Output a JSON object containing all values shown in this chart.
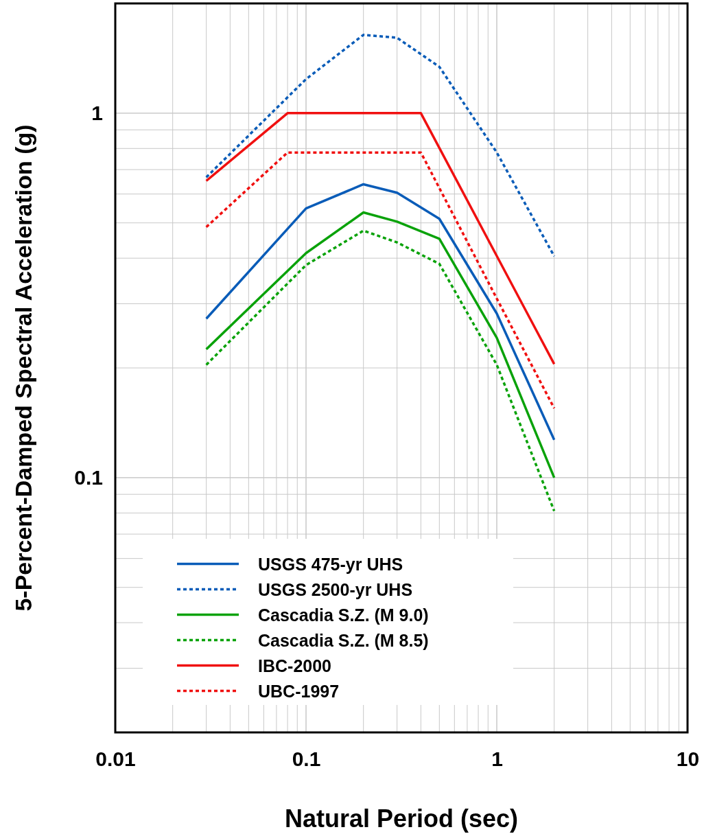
{
  "chart_data": {
    "type": "line",
    "xlabel": "Natural Period (sec)",
    "ylabel": "5-Percent-Damped Spectral Acceleration (g)",
    "log": "xy",
    "xlim": [
      0.01,
      10
    ],
    "xticks": [
      0.01,
      0.1,
      1,
      10
    ],
    "ylim": [
      0.02,
      2
    ],
    "yticks": [
      0.1,
      1
    ],
    "grid": true,
    "legend": "bottom left",
    "marker": "none",
    "series": [
      {
        "name": "USGS 475-yr UHS",
        "color": "#0a5cb8",
        "line_style": "solid",
        "x": [
          0.03,
          0.1,
          0.2,
          0.3,
          0.5,
          1,
          2
        ],
        "values": [
          0.273,
          0.548,
          0.638,
          0.605,
          0.513,
          0.282,
          0.127
        ]
      },
      {
        "name": "USGS 2500-yr UHS",
        "color": "#0a5cb8",
        "line_style": "dotted",
        "x": [
          0.03,
          0.1,
          0.2,
          0.3,
          0.5,
          1,
          2
        ],
        "values": [
          0.667,
          1.24,
          1.64,
          1.61,
          1.34,
          0.78,
          0.405
        ]
      },
      {
        "name": "Cascadia S.Z. (M 9.0)",
        "color": "#0aa20a",
        "line_style": "solid",
        "x": [
          0.03,
          0.1,
          0.2,
          0.3,
          0.5,
          1,
          2
        ],
        "values": [
          0.225,
          0.413,
          0.534,
          0.504,
          0.452,
          0.242,
          0.1
        ]
      },
      {
        "name": "Cascadia S.Z. (M 8.5)",
        "color": "#0aa20a",
        "line_style": "dotted",
        "x": [
          0.03,
          0.1,
          0.2,
          0.3,
          0.5,
          1,
          2
        ],
        "values": [
          0.204,
          0.383,
          0.476,
          0.442,
          0.386,
          0.204,
          0.081
        ]
      },
      {
        "name": "IBC-2000",
        "color": "#f01010",
        "line_style": "solid",
        "x": [
          0.03,
          0.08,
          0.4,
          2
        ],
        "values": [
          0.652,
          1.0,
          1.0,
          0.205
        ]
      },
      {
        "name": "UBC-1997",
        "color": "#f01010",
        "line_style": "dotted",
        "x": [
          0.03,
          0.08,
          0.4,
          1,
          2
        ],
        "values": [
          0.487,
          0.78,
          0.78,
          0.31,
          0.155
        ]
      }
    ]
  }
}
